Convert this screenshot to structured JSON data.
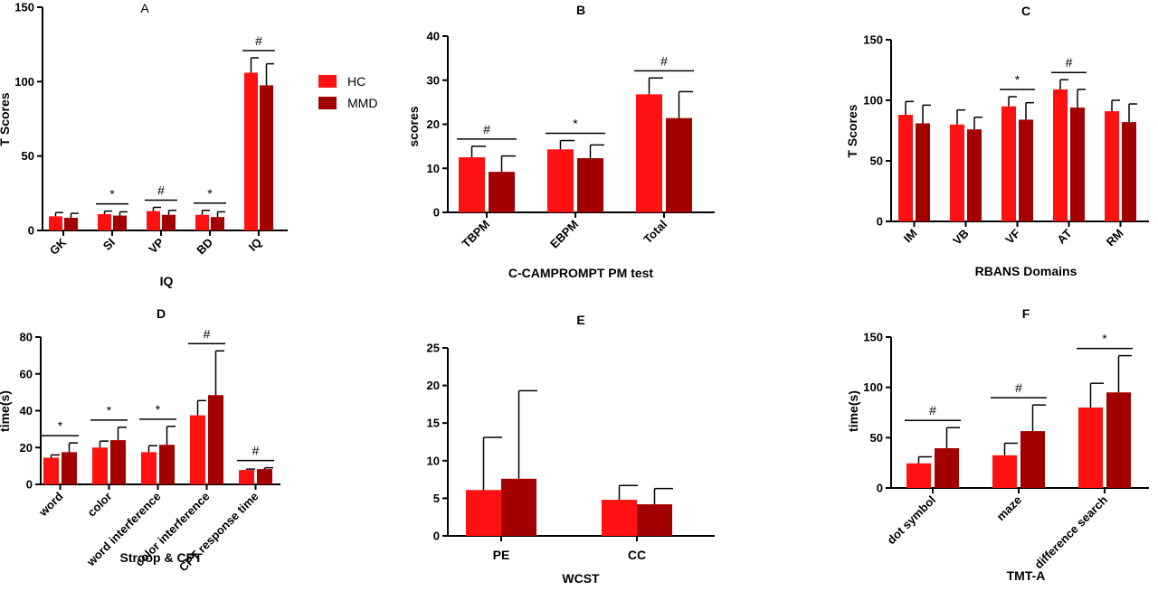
{
  "colors": {
    "hc": "#ff1111",
    "mmd": "#a30000",
    "axis": "#000000"
  },
  "legend": {
    "items": [
      {
        "label": "HC",
        "color": "#ff1111"
      },
      {
        "label": "MMD",
        "color": "#a30000"
      }
    ]
  },
  "chart_data": [
    {
      "panel": "A",
      "type": "bar",
      "title": "A",
      "xlabel": "IQ",
      "ylabel": "T Scores",
      "ylim": [
        0,
        150
      ],
      "yticks": [
        0,
        50,
        100,
        150
      ],
      "categories": [
        "GK",
        "SI",
        "VP",
        "BD",
        "IQ"
      ],
      "series": [
        {
          "name": "HC",
          "values": [
            9.5,
            11,
            13,
            10.5,
            106
          ],
          "errors": [
            2.5,
            2,
            2.5,
            3,
            10
          ]
        },
        {
          "name": "MMD",
          "values": [
            8.5,
            10,
            10.5,
            9,
            97.5
          ],
          "errors": [
            3,
            2.5,
            3,
            3.5,
            14.5
          ]
        }
      ],
      "significance": [
        "",
        "*",
        "#",
        "*",
        "#"
      ]
    },
    {
      "panel": "B",
      "type": "bar",
      "title": "B",
      "xlabel": "C-CAMPROMPT PM test",
      "ylabel": "scores",
      "ylim": [
        0,
        40
      ],
      "yticks": [
        0,
        10,
        20,
        30,
        40
      ],
      "categories": [
        "TBPM",
        "EBPM",
        "Total"
      ],
      "series": [
        {
          "name": "HC",
          "values": [
            12.5,
            14.3,
            26.8
          ],
          "errors": [
            2.5,
            2,
            3.7
          ]
        },
        {
          "name": "MMD",
          "values": [
            9.2,
            12.3,
            21.4
          ],
          "errors": [
            3.6,
            3,
            6
          ]
        }
      ],
      "significance": [
        "#",
        "*",
        "#"
      ]
    },
    {
      "panel": "C",
      "type": "bar",
      "title": "C",
      "xlabel": "RBANS Domains",
      "ylabel": "T Scores",
      "ylim": [
        0,
        150
      ],
      "yticks": [
        0,
        50,
        100,
        150
      ],
      "categories": [
        "IM",
        "VB",
        "VF",
        "AT",
        "RM"
      ],
      "series": [
        {
          "name": "HC",
          "values": [
            88,
            80,
            95,
            109,
            91
          ],
          "errors": [
            11,
            12,
            8,
            8,
            9
          ]
        },
        {
          "name": "MMD",
          "values": [
            81,
            76,
            84,
            94,
            82
          ],
          "errors": [
            15,
            10,
            14,
            15,
            15
          ]
        }
      ],
      "significance": [
        "",
        "",
        "*",
        "#",
        ""
      ]
    },
    {
      "panel": "D",
      "type": "bar",
      "title": "D",
      "xlabel": "Stroop & CPT",
      "ylabel": "time(s)",
      "ylim": [
        0,
        80
      ],
      "yticks": [
        0,
        20,
        40,
        60,
        80
      ],
      "categories": [
        "word",
        "color",
        "word interference",
        "color interference",
        "CPT response time"
      ],
      "series": [
        {
          "name": "HC",
          "values": [
            14.5,
            20,
            17.5,
            37.5,
            7.8
          ],
          "errors": [
            1.5,
            3.5,
            3.5,
            8,
            0.5
          ]
        },
        {
          "name": "MMD",
          "values": [
            17.5,
            24,
            21.5,
            48.5,
            8.3
          ],
          "errors": [
            5,
            7,
            10,
            24,
            0.7
          ]
        }
      ],
      "significance": [
        "*",
        "*",
        "*",
        "#",
        "#"
      ]
    },
    {
      "panel": "E",
      "type": "bar",
      "title": "E",
      "xlabel": "WCST",
      "ylabel": "",
      "ylim": [
        0,
        25
      ],
      "yticks": [
        0,
        5,
        10,
        15,
        20,
        25
      ],
      "categories": [
        "PE",
        "CC"
      ],
      "series": [
        {
          "name": "HC",
          "values": [
            6.1,
            4.8
          ],
          "errors": [
            7,
            1.9
          ]
        },
        {
          "name": "MMD",
          "values": [
            7.6,
            4.2
          ],
          "errors": [
            11.7,
            2.1
          ]
        }
      ],
      "significance": [
        "",
        ""
      ]
    },
    {
      "panel": "F",
      "type": "bar",
      "title": "F",
      "xlabel": "TMT-A",
      "ylabel": "time(s)",
      "ylim": [
        0,
        150
      ],
      "yticks": [
        0,
        50,
        100,
        150
      ],
      "categories": [
        "dot symbol",
        "maze",
        "difference search"
      ],
      "series": [
        {
          "name": "HC",
          "values": [
            24.5,
            32.5,
            80
          ],
          "errors": [
            6.5,
            12,
            24
          ]
        },
        {
          "name": "MMD",
          "values": [
            39.5,
            56.5,
            95
          ],
          "errors": [
            20.5,
            26,
            36.5
          ]
        }
      ],
      "significance": [
        "#",
        "#",
        "*"
      ]
    }
  ]
}
